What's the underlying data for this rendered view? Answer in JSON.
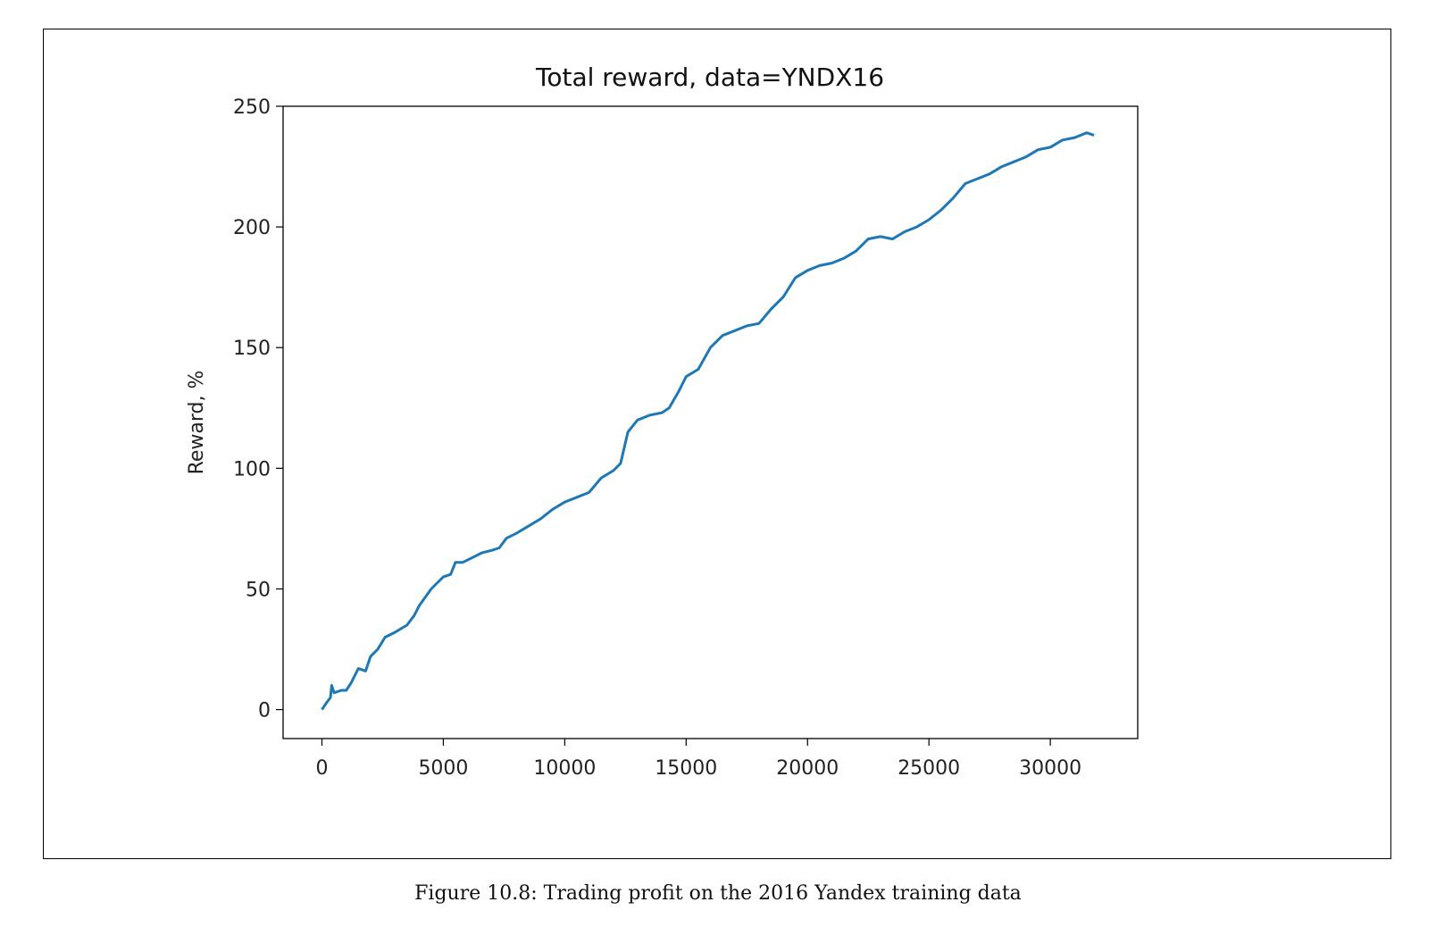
{
  "figure": {
    "caption": "Figure 10.8: Trading profit on the 2016 Yandex training data"
  },
  "chart_data": {
    "type": "line",
    "title": "Total reward, data=YNDX16",
    "xlabel": "",
    "ylabel": "Reward, %",
    "xlim": [
      -1600,
      33600
    ],
    "ylim": [
      -12,
      250
    ],
    "x_ticks": [
      0,
      5000,
      10000,
      15000,
      20000,
      25000,
      30000
    ],
    "y_ticks": [
      0,
      50,
      100,
      150,
      200,
      250
    ],
    "grid": false,
    "line_color": "#1f77b4",
    "series": [
      {
        "x": [
          0,
          200,
          350,
          400,
          500,
          800,
          1000,
          1200,
          1500,
          1800,
          2000,
          2300,
          2600,
          3000,
          3500,
          3800,
          4000,
          4500,
          5000,
          5300,
          5500,
          5800,
          6200,
          6600,
          7000,
          7300,
          7600,
          8000,
          8500,
          9000,
          9500,
          10000,
          10500,
          11000,
          11500,
          12000,
          12300,
          12600,
          13000,
          13500,
          14000,
          14300,
          14700,
          15000,
          15500,
          16000,
          16500,
          17000,
          17500,
          18000,
          18500,
          19000,
          19500,
          20000,
          20500,
          21000,
          21500,
          22000,
          22500,
          23000,
          23500,
          24000,
          24500,
          25000,
          25500,
          26000,
          26500,
          27000,
          27500,
          28000,
          28500,
          29000,
          29500,
          30000,
          30500,
          31000,
          31500,
          31800
        ],
        "y": [
          0,
          3,
          5,
          10,
          7,
          8,
          8,
          11,
          17,
          16,
          22,
          25,
          30,
          32,
          35,
          39,
          43,
          50,
          55,
          56,
          61,
          61,
          63,
          65,
          66,
          67,
          71,
          73,
          76,
          79,
          83,
          86,
          88,
          90,
          96,
          99,
          102,
          115,
          120,
          122,
          123,
          125,
          132,
          138,
          141,
          150,
          155,
          157,
          159,
          160,
          166,
          171,
          179,
          182,
          184,
          185,
          187,
          190,
          195,
          196,
          195,
          198,
          200,
          203,
          207,
          212,
          218,
          220,
          222,
          225,
          227,
          229,
          232,
          233,
          236,
          237,
          239,
          238
        ]
      }
    ]
  }
}
